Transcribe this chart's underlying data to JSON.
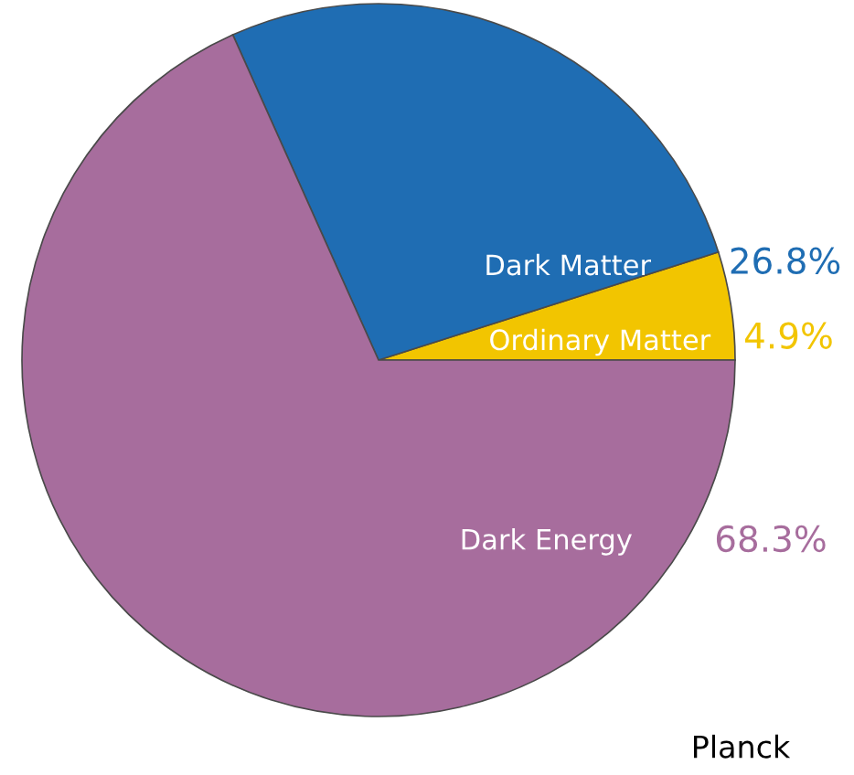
{
  "chart_data": {
    "type": "pie",
    "categories": [
      "Ordinary Matter",
      "Dark Matter",
      "Dark Energy"
    ],
    "values": [
      4.9,
      26.8,
      68.3
    ],
    "colors": [
      "#f2c500",
      "#1f6db3",
      "#a76d9d"
    ],
    "value_labels": [
      "4.9%",
      "26.8%",
      "68.3%"
    ],
    "annotations": [
      "Planck"
    ]
  }
}
